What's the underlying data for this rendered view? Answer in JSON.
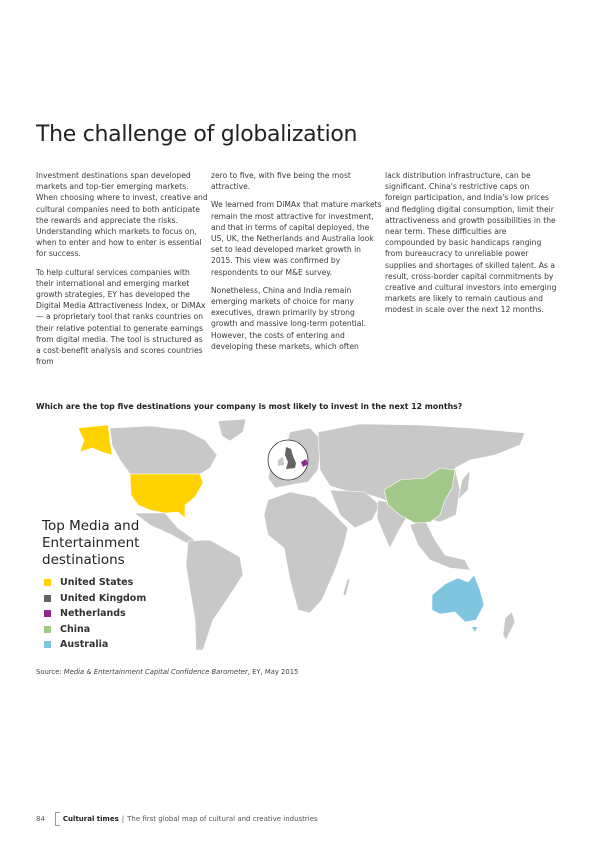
{
  "title": "The challenge of globalization",
  "columns": [
    [
      "Investment destinations span developed markets and top-tier emerging markets. When choosing where to invest, creative and cultural companies need to both anticipate the rewards and appreciate the risks. Understanding which markets to focus on, when to enter and how to enter is essential for success.",
      "To help cultural services companies with their international and emerging market growth strategies, EY has developed the Digital Media Attractiveness Index, or DiMAx — a proprietary tool that ranks countries on their relative potential to generate earnings from digital media. The tool is structured as a cost-benefit analysis and scores countries from"
    ],
    [
      "zero to five, with five being the most attractive.",
      "We learned from DiMAx that mature markets remain the most attractive for investment, and that in terms of capital deployed, the US, UK, the Netherlands and Australia look set to lead developed market growth in 2015. This view was confirmed by respondents to our M&E survey.",
      "Nonetheless, China and India remain emerging markets of choice for many executives, drawn primarily by strong growth and massive long-term potential. However, the costs of entering and developing these markets, which often"
    ],
    [
      "lack distribution infrastructure, can be significant. China's restrictive caps on foreign participation, and India's low prices and fledgling digital consumption, limit their attractiveness and growth possibilities in the near term. These difficulties are compounded by basic handicaps ranging from bureaucracy to unreliable power supplies and shortages of skilled talent. As a result, cross-border capital commitments by creative and cultural investors into emerging markets are likely to remain cautious and modest in scale over the next 12 months."
    ]
  ],
  "question": "Which are the top five destinations your company is most likely to invest in the next 12 months?",
  "map": {
    "legend_title": "Top Media and Entertainment destinations",
    "base_color": "#c8c8c8",
    "items": [
      {
        "label": "United States",
        "color": "#ffd200"
      },
      {
        "label": "United Kingdom",
        "color": "#646464"
      },
      {
        "label": "Netherlands",
        "color": "#91278f"
      },
      {
        "label": "China",
        "color": "#a3c98a"
      },
      {
        "label": "Australia",
        "color": "#7ec6df"
      }
    ]
  },
  "source": {
    "prefix": "Source: ",
    "publication": "Media & Entertainment Capital Confidence Barometer",
    "suffix": ", EY, May 2015"
  },
  "footer": {
    "page_number": "84",
    "publication": "Cultural times",
    "subtitle": "The first global map of cultural and creative industries"
  }
}
